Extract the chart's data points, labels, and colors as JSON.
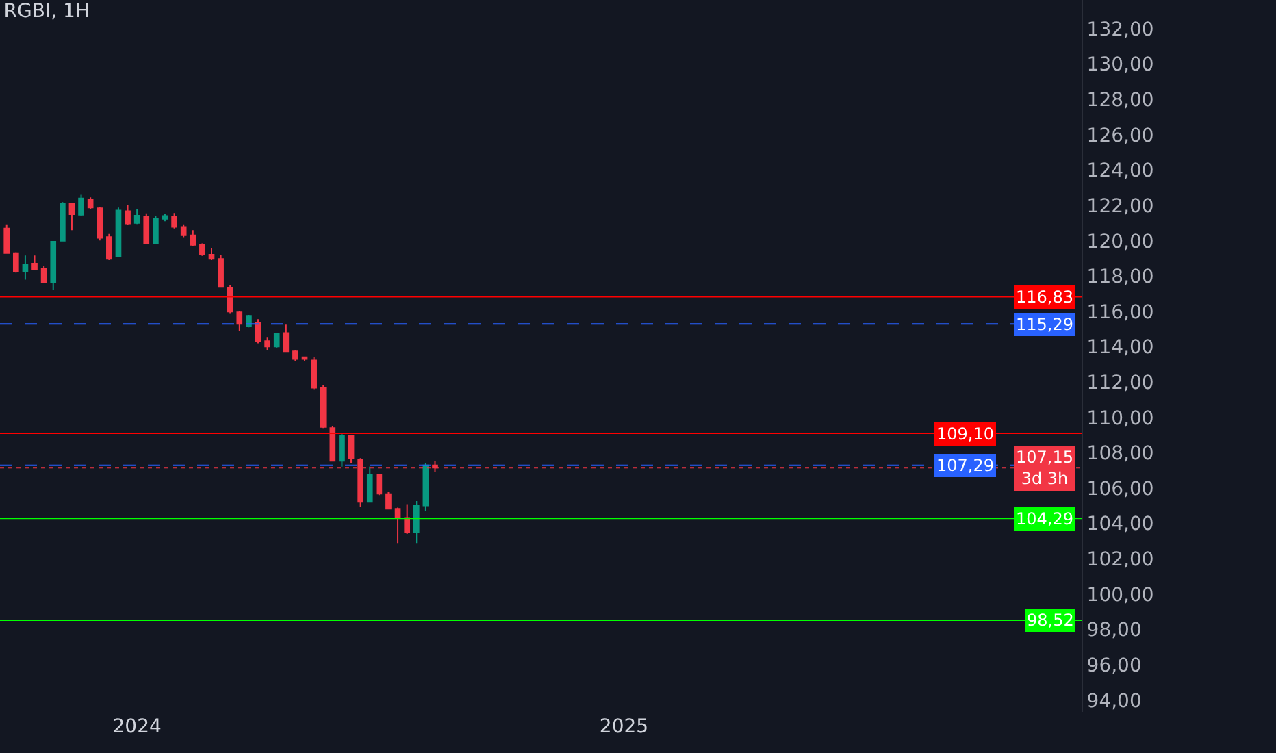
{
  "chart_data": {
    "type": "candlestick",
    "title": "RGBI, 1H",
    "x": [
      "2023-09-25",
      "2023-10-02",
      "2023-10-09",
      "2023-10-16",
      "2023-10-23",
      "2023-10-30",
      "2023-11-06",
      "2023-11-13",
      "2023-11-20",
      "2023-11-27",
      "2023-12-04",
      "2023-12-11",
      "2023-12-18",
      "2023-12-25",
      "2024-01-01",
      "2024-01-08",
      "2024-01-15",
      "2024-01-22",
      "2024-01-29",
      "2024-02-05",
      "2024-02-12",
      "2024-02-19",
      "2024-02-26",
      "2024-03-04",
      "2024-03-11",
      "2024-03-18",
      "2024-03-25",
      "2024-04-01",
      "2024-04-08",
      "2024-04-15",
      "2024-04-22",
      "2024-04-29",
      "2024-05-06",
      "2024-05-13",
      "2024-05-20",
      "2024-05-27",
      "2024-06-03",
      "2024-06-10",
      "2024-06-17",
      "2024-06-24",
      "2024-07-01",
      "2024-07-08",
      "2024-07-15",
      "2024-07-22",
      "2024-07-29",
      "2024-08-05",
      "2024-08-12"
    ],
    "ohlc": [
      [
        120.7,
        120.93,
        119.3,
        119.3
      ],
      [
        119.3,
        119.35,
        118.2,
        118.29
      ],
      [
        118.28,
        119.17,
        117.8,
        118.63
      ],
      [
        118.71,
        119.17,
        118.4,
        118.4
      ],
      [
        118.4,
        118.58,
        117.6,
        117.67
      ],
      [
        117.67,
        119.95,
        117.23,
        119.95
      ],
      [
        120.0,
        122.19,
        120.0,
        122.09
      ],
      [
        122.09,
        122.09,
        120.6,
        121.5
      ],
      [
        121.47,
        122.61,
        121.4,
        122.4
      ],
      [
        122.35,
        122.46,
        121.8,
        121.88
      ],
      [
        121.84,
        121.9,
        120.02,
        120.16
      ],
      [
        120.21,
        120.39,
        118.9,
        118.97
      ],
      [
        119.12,
        121.88,
        119.1,
        121.71
      ],
      [
        121.68,
        122.02,
        120.9,
        120.98
      ],
      [
        121.01,
        121.81,
        120.95,
        121.42
      ],
      [
        121.37,
        121.55,
        119.8,
        119.87
      ],
      [
        119.87,
        121.4,
        119.8,
        121.24
      ],
      [
        121.24,
        121.5,
        121.1,
        121.4
      ],
      [
        121.37,
        121.57,
        120.7,
        120.78
      ],
      [
        120.78,
        120.93,
        120.2,
        120.31
      ],
      [
        120.31,
        120.6,
        119.7,
        119.77
      ],
      [
        119.77,
        119.85,
        119.15,
        119.22
      ],
      [
        119.22,
        119.56,
        118.9,
        118.97
      ],
      [
        118.97,
        119.2,
        117.4,
        117.42
      ],
      [
        117.36,
        117.5,
        115.9,
        115.99
      ],
      [
        115.95,
        116.0,
        114.9,
        115.29
      ],
      [
        115.16,
        115.8,
        115.1,
        115.76
      ],
      [
        115.35,
        115.56,
        114.2,
        114.32
      ],
      [
        114.32,
        114.52,
        113.82,
        114.01
      ],
      [
        114.01,
        114.8,
        113.95,
        114.73
      ],
      [
        114.78,
        115.25,
        113.7,
        113.74
      ],
      [
        113.74,
        113.8,
        113.2,
        113.31
      ],
      [
        113.41,
        113.45,
        113.2,
        113.31
      ],
      [
        113.23,
        113.43,
        111.6,
        111.68
      ],
      [
        111.68,
        111.85,
        109.4,
        109.46
      ],
      [
        109.4,
        109.5,
        107.5,
        107.54
      ],
      [
        107.54,
        109.1,
        107.21,
        108.97
      ],
      [
        108.97,
        109.0,
        107.4,
        107.67
      ],
      [
        107.62,
        107.7,
        104.96,
        105.22
      ],
      [
        105.22,
        107.21,
        105.2,
        106.77
      ],
      [
        106.77,
        106.8,
        105.6,
        105.68
      ],
      [
        105.66,
        105.79,
        104.8,
        104.83
      ],
      [
        104.83,
        104.9,
        102.89,
        104.32
      ],
      [
        104.32,
        105.09,
        103.4,
        103.49
      ],
      [
        103.49,
        105.27,
        102.89,
        105.01
      ],
      [
        105.01,
        107.42,
        104.7,
        107.29
      ],
      [
        107.29,
        107.54,
        106.9,
        107.15
      ]
    ],
    "colors": [
      "#f23645",
      "#f23645",
      "#089981",
      "#f23645",
      "#f23645",
      "#089981",
      "#089981",
      "#f23645",
      "#089981",
      "#f23645",
      "#f23645",
      "#f23645",
      "#089981",
      "#f23645",
      "#089981",
      "#f23645",
      "#089981",
      "#089981",
      "#f23645",
      "#f23645",
      "#f23645",
      "#f23645",
      "#f23645",
      "#f23645",
      "#f23645",
      "#f23645",
      "#089981",
      "#f23645",
      "#f23645",
      "#089981",
      "#f23645",
      "#f23645",
      "#f23645",
      "#f23645",
      "#f23645",
      "#f23645",
      "#089981",
      "#f23645",
      "#f23645",
      "#089981",
      "#f23645",
      "#f23645",
      "#f23645",
      "#f23645",
      "#089981",
      "#089981",
      "#f23645"
    ],
    "xlim": [
      "2023-09-20",
      "2025-12-11"
    ],
    "xticks": [
      {
        "value": "2024-01-01",
        "label": "2024"
      },
      {
        "value": "2025-01-01",
        "label": "2025"
      }
    ],
    "ylim": [
      93.33,
      133.63
    ],
    "yticks": [
      {
        "value": 94,
        "label": "94,00"
      },
      {
        "value": 96,
        "label": "96,00"
      },
      {
        "value": 98,
        "label": "98,00"
      },
      {
        "value": 100,
        "label": "100,00"
      },
      {
        "value": 102,
        "label": "102,00"
      },
      {
        "value": 104,
        "label": "104,00"
      },
      {
        "value": 106,
        "label": "106,00"
      },
      {
        "value": 108,
        "label": "108,00"
      },
      {
        "value": 110,
        "label": "110,00"
      },
      {
        "value": 112,
        "label": "112,00"
      },
      {
        "value": 114,
        "label": "114,00"
      },
      {
        "value": 116,
        "label": "116,00"
      },
      {
        "value": 118,
        "label": "118,00"
      },
      {
        "value": 120,
        "label": "120,00"
      },
      {
        "value": 122,
        "label": "122,00"
      },
      {
        "value": 124,
        "label": "124,00"
      },
      {
        "value": 126,
        "label": "126,00"
      },
      {
        "value": 128,
        "label": "128,00"
      },
      {
        "value": 130,
        "label": "130,00"
      },
      {
        "value": 132,
        "label": "132,00"
      }
    ],
    "ref_lines": [
      {
        "axis": "y",
        "value": 116.83,
        "label": "116,83",
        "color": "#ff0000",
        "line_style": "solid"
      },
      {
        "axis": "y",
        "value": 115.29,
        "label": "115,29",
        "color": "#2962ff",
        "line_style": "dashed"
      },
      {
        "axis": "y",
        "value": 109.1,
        "label": "109,10",
        "color": "#ff0000",
        "line_style": "solid"
      },
      {
        "axis": "y",
        "value": 107.29,
        "label": "107,29",
        "color": "#2962ff",
        "line_style": "dashed"
      },
      {
        "axis": "y",
        "value": 107.15,
        "label": "107,15\n3d 3h",
        "color": "#f23645",
        "line_style": "dotted"
      },
      {
        "axis": "y",
        "value": 104.29,
        "label": "104,29",
        "color": "#00ff00",
        "line_style": "solid"
      },
      {
        "axis": "y",
        "value": 98.52,
        "label": "98,52",
        "color": "#00ff00",
        "line_style": "solid"
      }
    ],
    "grid": false
  }
}
